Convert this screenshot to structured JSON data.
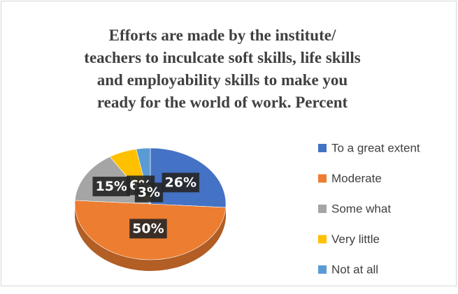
{
  "chart_data": {
    "type": "pie",
    "title": [
      "Efforts are made by the institute/",
      "teachers to inculcate soft skills, life skills",
      "and employability skills to make you",
      "ready for the world of work. Percent"
    ],
    "categories": [
      "To a great extent",
      "Moderate",
      "Some what",
      "Very little",
      "Not at all"
    ],
    "values": [
      26,
      50,
      15,
      6,
      3
    ],
    "value_labels": [
      "26%",
      "50%",
      "15%",
      "6%",
      "3%"
    ],
    "colors": [
      "#4472c4",
      "#ed7d31",
      "#a5a5a5",
      "#ffc000",
      "#5b9bd5"
    ],
    "legend": "right"
  }
}
